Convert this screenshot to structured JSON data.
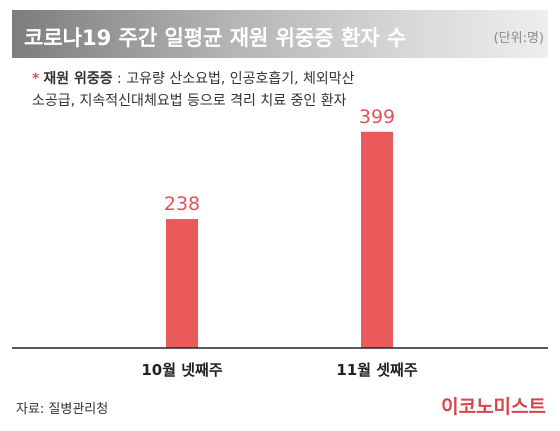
{
  "header": {
    "title": "코로나19 주간 일평균 재원 위중증 환자 수",
    "unit": "(단위:명)"
  },
  "note": {
    "marker": "*",
    "label": "재원 위중증",
    "text": " : 고유량 산소요법, 인공호흡기, 체외막산소공급, 지속적신대체요법 등으로 격리 치료 중인 환자"
  },
  "chart_data": {
    "type": "bar",
    "categories": [
      "10월 넷째주",
      "11월 셋째주"
    ],
    "values": [
      238,
      399
    ],
    "ylim": [
      0,
      430
    ],
    "bar_color": "#eb5a5a",
    "label_color": "#e0555a",
    "grid": false
  },
  "footer": {
    "source": "자료: 질병관리청",
    "brand": "이코노미스트",
    "brand_color": "#d9444b"
  }
}
